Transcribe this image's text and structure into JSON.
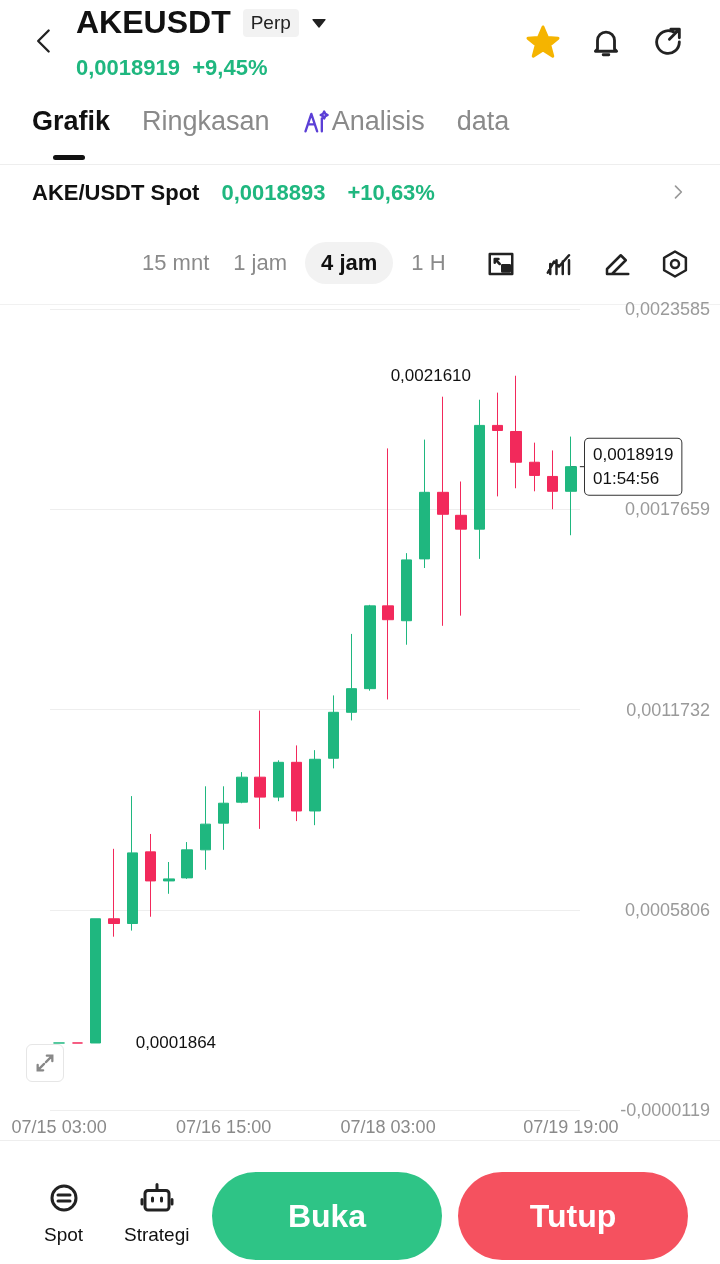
{
  "chart_data": {
    "type": "candlestick",
    "title": "AKEUSDT",
    "subtitle": "0,0018919  +9,45%",
    "annotations": [
      "Perp",
      "Grafik",
      "Ringkasan",
      "Analisis",
      "data",
      "AKE/USDT Spot",
      "0,0018893",
      "+10,63%",
      "15 mnt",
      "1 jam",
      "4 jam",
      "1 H",
      "Spot",
      "Strategi",
      "Buka",
      "Tutup",
      "0,0021610",
      "0,0001864"
    ],
    "categories": [
      "07/15 03:00",
      null,
      null,
      null,
      null,
      null,
      null,
      null,
      null,
      "07/16 15:00",
      null,
      null,
      null,
      null,
      null,
      null,
      null,
      null,
      "07/18 03:00",
      null,
      null,
      null,
      null,
      null,
      null,
      null,
      null,
      null,
      "07/19 19:00"
    ],
    "ohlc": [
      [
        0.0001864,
        0.0001864,
        0.0001864,
        0.0001864
      ],
      [
        0.0001864,
        0.0001864,
        0.0001864,
        0.0001864
      ],
      [
        0.0001864,
        0.000554,
        0.0001864,
        0.000554
      ],
      [
        0.000554,
        0.000761,
        0.000501,
        0.00054
      ],
      [
        0.00054,
        0.000917,
        0.000519,
        0.000749
      ],
      [
        0.000752,
        0.000805,
        0.00056,
        0.000666
      ],
      [
        0.000666,
        0.000722,
        0.000628,
        0.000672
      ],
      [
        0.000675,
        0.000781,
        0.000672,
        0.000758
      ],
      [
        0.000758,
        0.000946,
        0.000699,
        0.000834
      ],
      [
        0.000837,
        0.000946,
        0.000758,
        0.000896
      ],
      [
        0.000899,
        0.000988,
        0.000896,
        0.000973
      ],
      [
        0.000973,
        0.00117,
        0.00082,
        0.000914
      ],
      [
        0.000914,
        0.001023,
        0.000902,
        0.001017
      ],
      [
        0.001017,
        0.001067,
        0.000843,
        0.000873
      ],
      [
        0.000873,
        0.001053,
        0.000831,
        0.001026
      ],
      [
        0.001029,
        0.001215,
        0.000999,
        0.001165
      ],
      [
        0.001165,
        0.001397,
        0.001141,
        0.001235
      ],
      [
        0.001235,
        0.001483,
        0.001229,
        0.00148
      ],
      [
        0.00148,
        0.001946,
        0.001203,
        0.001439
      ],
      [
        0.001436,
        0.001636,
        0.001365,
        0.001616
      ],
      [
        0.001619,
        0.001972,
        0.001592,
        0.001816
      ],
      [
        0.001816,
        0.002099,
        0.001421,
        0.001751
      ],
      [
        0.001748,
        0.001848,
        0.001451,
        0.001707
      ],
      [
        0.001707,
        0.00209,
        0.001619,
        0.002014
      ],
      [
        0.002014,
        0.002111,
        0.001804,
        0.001999
      ],
      [
        0.001996,
        0.002161,
        0.001828,
        0.001905
      ],
      [
        0.001905,
        0.001963,
        0.001819,
        0.001866
      ],
      [
        0.001863,
        0.00194,
        0.001766,
        0.001819
      ],
      [
        0.001819,
        0.001981,
        0.001689,
        0.0018919
      ]
    ],
    "colors": [
      "#1fb77f",
      "#f2295b",
      "#1fb77f",
      "#f2295b",
      "#1fb77f",
      "#f2295b",
      "#1fb77f",
      "#1fb77f",
      "#1fb77f",
      "#1fb77f",
      "#1fb77f",
      "#f2295b",
      "#1fb77f",
      "#f2295b",
      "#1fb77f",
      "#1fb77f",
      "#1fb77f",
      "#1fb77f",
      "#f2295b",
      "#1fb77f",
      "#1fb77f",
      "#f2295b",
      "#f2295b",
      "#1fb77f",
      "#f2295b",
      "#f2295b",
      "#f2295b",
      "#f2295b",
      "#1fb77f"
    ],
    "ylim": [
      -1.19e-05,
      0.0023585
    ],
    "yticks": [
      {
        "value": -1.19e-05,
        "label": "-0,0000119"
      },
      {
        "value": 0.0005806,
        "label": "0,0005806"
      },
      {
        "value": 0.0011732,
        "label": "0,0011732"
      },
      {
        "value": 0.0017659,
        "label": "0,0017659"
      },
      {
        "value": 0.0023585,
        "label": "0,0023585"
      }
    ],
    "grid": "y",
    "ref_lines": [
      {
        "axis": "y",
        "value": 0.0018919,
        "label": "0,0018919\n01:54:56",
        "line_style": "dashed",
        "color": "#222222"
      }
    ]
  }
}
